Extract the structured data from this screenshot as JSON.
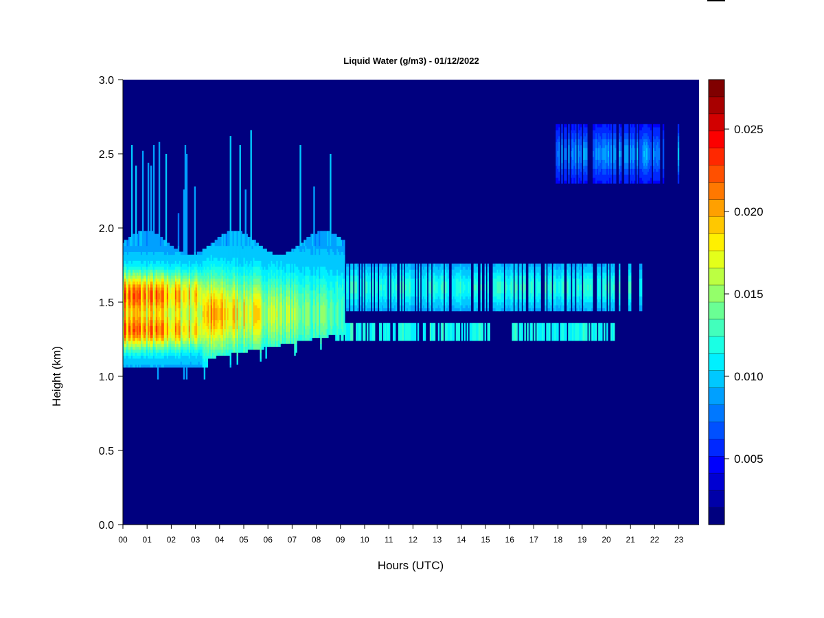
{
  "chart_data": {
    "type": "heatmap",
    "title": "Liquid Water (g/m3) - 01/12/2022",
    "xlabel": "Hours (UTC)",
    "ylabel": "Height (km)",
    "x_ticks": [
      "00",
      "01",
      "02",
      "03",
      "04",
      "05",
      "06",
      "07",
      "08",
      "09",
      "10",
      "11",
      "12",
      "13",
      "14",
      "15",
      "16",
      "17",
      "18",
      "19",
      "20",
      "21",
      "22",
      "23"
    ],
    "y_ticks": [
      "0.0",
      "0.5",
      "1.0",
      "1.5",
      "2.0",
      "2.5",
      "3.0"
    ],
    "xlim": [
      0,
      23.8
    ],
    "ylim": [
      0,
      3.0
    ],
    "colorbar": {
      "min": 0.001,
      "max": 0.028,
      "tick_values": [
        0.005,
        0.01,
        0.015,
        0.02,
        0.025
      ],
      "tick_labels": [
        "0.005",
        "0.010",
        "0.015",
        "0.020",
        "0.025"
      ],
      "colors": [
        "#00007f",
        "#0000a8",
        "#0000d2",
        "#0000fc",
        "#0028ff",
        "#0050ff",
        "#0078ff",
        "#00a0ff",
        "#00c8ff",
        "#00f0ff",
        "#1affe4",
        "#42ffbc",
        "#6aff94",
        "#94ff6a",
        "#bcff42",
        "#e4ff1a",
        "#fff000",
        "#ffc800",
        "#ffa000",
        "#ff7800",
        "#ff5000",
        "#ff2800",
        "#fc0000",
        "#d20000",
        "#a80000",
        "#800000"
      ]
    },
    "background_value": 0.0005,
    "features": [
      {
        "label": "main cloud layer",
        "x": [
          0,
          9
        ],
        "y": [
          1.05,
          1.95
        ],
        "peak": 0.027,
        "peak_height": 1.5,
        "peak_hours": [
          0,
          2
        ]
      },
      {
        "label": "upper band",
        "x": [
          9,
          21.5
        ],
        "y": [
          1.45,
          1.75
        ],
        "peak": 0.012
      },
      {
        "label": "lower band",
        "x": [
          9,
          20.5
        ],
        "y": [
          1.25,
          1.35
        ],
        "peak": 0.011
      },
      {
        "label": "high layer",
        "x": [
          17.8,
          23
        ],
        "y": [
          2.3,
          2.7
        ],
        "peak": 0.008
      }
    ]
  }
}
